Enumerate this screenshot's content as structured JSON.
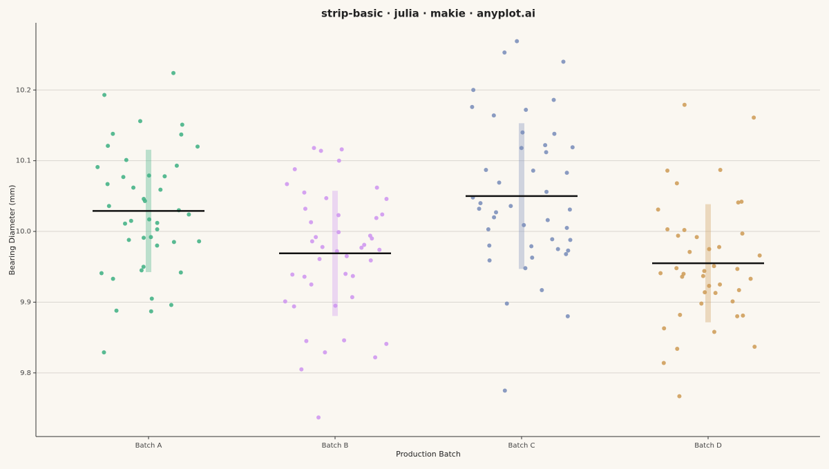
{
  "chart_data": {
    "type": "strip",
    "title": "strip-basic · julia · makie · anyplot.ai",
    "x_label": "Production Batch",
    "y_label": "Bearing Diameter (mm)",
    "categories": [
      "Batch A",
      "Batch B",
      "Batch C",
      "Batch D"
    ],
    "colors": [
      "#46b287",
      "#cf98f0",
      "#7d90bb",
      "#cf9f5c"
    ],
    "values": [
      [
        10.224,
        10.193,
        10.156,
        10.151,
        10.138,
        10.137,
        10.121,
        10.12,
        10.101,
        10.093,
        10.091,
        10.077,
        10.078,
        10.079,
        10.067,
        10.062,
        10.059,
        10.046,
        10.043,
        10.036,
        10.03,
        10.024,
        10.015,
        10.017,
        10.012,
        10.011,
        10.003,
        9.992,
        9.991,
        9.988,
        9.986,
        9.985,
        9.98,
        9.95,
        9.945,
        9.942,
        9.941,
        9.933,
        9.905,
        9.896,
        9.888,
        9.887,
        9.829
      ],
      [
        10.116,
        10.114,
        10.118,
        10.1,
        10.088,
        10.067,
        10.062,
        10.055,
        10.047,
        10.046,
        10.032,
        10.023,
        10.024,
        10.019,
        10.013,
        9.999,
        9.994,
        9.992,
        9.99,
        9.986,
        9.981,
        9.978,
        9.977,
        9.974,
        9.972,
        9.965,
        9.961,
        9.959,
        9.94,
        9.939,
        9.937,
        9.936,
        9.925,
        9.907,
        9.901,
        9.895,
        9.894,
        9.846,
        9.845,
        9.841,
        9.829,
        9.822,
        9.805,
        9.737
      ],
      [
        10.269,
        10.253,
        10.24,
        10.2,
        10.186,
        10.176,
        10.172,
        10.164,
        10.14,
        10.138,
        10.122,
        10.119,
        10.118,
        10.112,
        10.087,
        10.086,
        10.083,
        10.069,
        10.056,
        10.048,
        10.04,
        10.036,
        10.031,
        10.032,
        10.027,
        10.02,
        10.016,
        10.009,
        10.005,
        10.003,
        9.989,
        9.988,
        9.98,
        9.979,
        9.975,
        9.973,
        9.968,
        9.963,
        9.959,
        9.948,
        9.917,
        9.898,
        9.88,
        9.775
      ],
      [
        10.179,
        10.161,
        10.087,
        10.086,
        10.068,
        10.042,
        10.041,
        10.031,
        10.003,
        10.002,
        9.997,
        9.994,
        9.992,
        9.978,
        9.975,
        9.971,
        9.966,
        9.951,
        9.948,
        9.947,
        9.944,
        9.941,
        9.94,
        9.937,
        9.936,
        9.933,
        9.925,
        9.923,
        9.917,
        9.914,
        9.913,
        9.901,
        9.898,
        9.882,
        9.881,
        9.88,
        9.863,
        9.858,
        9.837,
        9.834,
        9.814,
        9.767
      ]
    ],
    "means": [
      10.029,
      9.969,
      10.05,
      9.955
    ],
    "sds": [
      0.0865,
      0.0885,
      0.103,
      0.0835
    ],
    "mean_color": "#111111",
    "ylim": [
      9.71,
      10.295
    ],
    "yticks": [
      9.8,
      9.9,
      {
        "value": 10,
        "label": "10.0"
      },
      10.1,
      10.2
    ],
    "grid": true
  }
}
